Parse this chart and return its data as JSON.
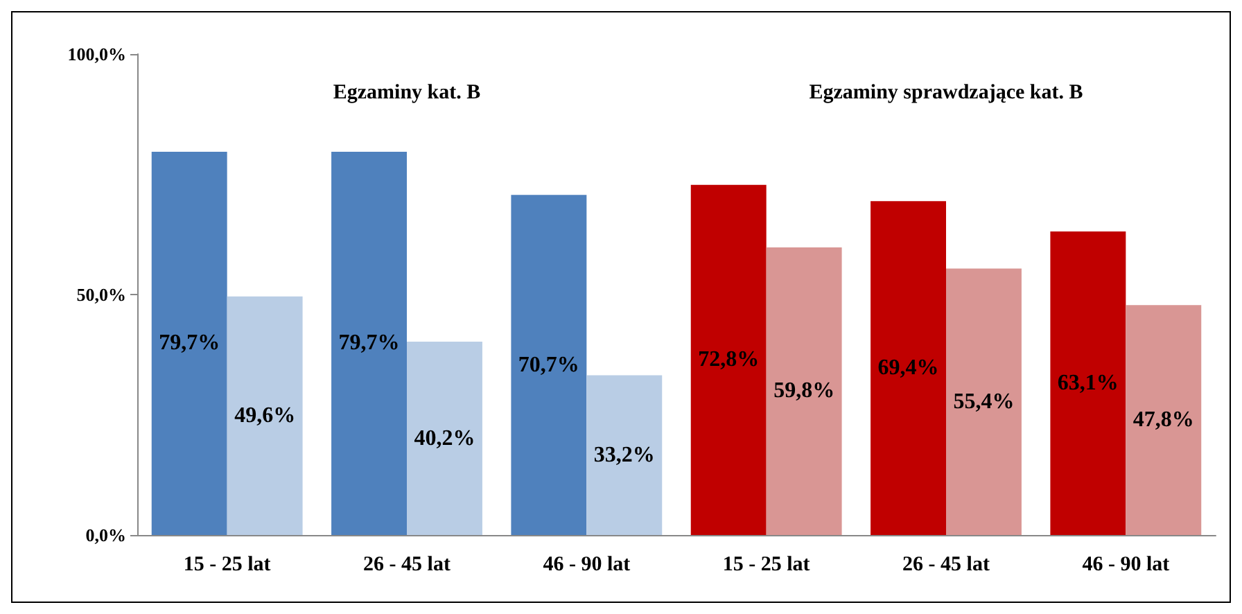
{
  "chart_data": {
    "type": "bar",
    "categories": [
      "15 - 25 lat",
      "26 - 45 lat",
      "46 - 90 lat",
      "15 - 25 lat",
      "26 - 45 lat",
      "46 - 90 lat"
    ],
    "series": [
      {
        "colors": [
          "#4f81bd",
          "#4f81bd",
          "#4f81bd",
          "#c00000",
          "#c00000",
          "#c00000"
        ],
        "values": [
          79.7,
          79.7,
          70.7,
          72.8,
          69.4,
          63.1
        ],
        "value_labels": [
          "79,7%",
          "79,7%",
          "70,7%",
          "72,8%",
          "69,4%",
          "63,1%"
        ]
      },
      {
        "colors": [
          "#b9cde5",
          "#b9cde5",
          "#b9cde5",
          "#d99694",
          "#d99694",
          "#d99694"
        ],
        "values": [
          49.6,
          40.2,
          33.2,
          59.8,
          55.4,
          47.8
        ],
        "value_labels": [
          "49,6%",
          "40,2%",
          "33,2%",
          "59,8%",
          "55,4%",
          "47,8%"
        ]
      }
    ],
    "ylim": [
      0,
      100
    ],
    "yticks": [
      {
        "value": 0,
        "label": "0,0%"
      },
      {
        "value": 50,
        "label": "50,0%"
      },
      {
        "value": 100,
        "label": "100,0%"
      }
    ],
    "annotations": [
      "Egzaminy kat. B",
      "Egzaminy sprawdzające kat. B"
    ],
    "grid": false
  }
}
